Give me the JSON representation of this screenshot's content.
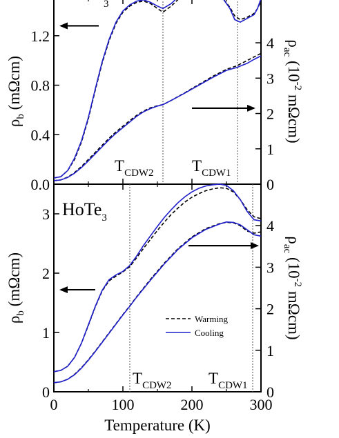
{
  "chart_data": [
    {
      "panel": "top",
      "type": "line",
      "xlim": [
        0,
        300
      ],
      "ylim_left": [
        0,
        1.5
      ],
      "ylim_right": [
        0,
        5.25
      ],
      "xticks": [
        0,
        100,
        200,
        300
      ],
      "yticks_left": [
        "0.0",
        "0.4",
        "0.8",
        "1.2"
      ],
      "yticks_right": [
        "0",
        "1",
        "2",
        "3",
        "4"
      ],
      "ylabel_left": {
        "main": "ρ",
        "sub": "b",
        "rest": " (mΩcm)"
      },
      "ylabel_right": {
        "main": "ρ",
        "sub": "ac",
        "rest": " (10",
        "sup": "-2",
        "rest2": " mΩcm)"
      },
      "top_fragment": "3",
      "annotations": [
        {
          "main": "T",
          "sub": "CDW2",
          "x": 158
        },
        {
          "main": "T",
          "sub": "CDW1",
          "x": 266
        }
      ],
      "series": [
        {
          "axis": "left",
          "style": "dashed",
          "color": "#000000",
          "x": [
            0,
            10,
            20,
            30,
            40,
            50,
            60,
            70,
            80,
            90,
            100,
            110,
            120,
            130,
            140,
            150,
            158,
            170,
            185,
            200,
            215,
            230,
            245,
            255,
            262,
            270,
            280,
            290,
            295,
            300
          ],
          "y": [
            0.05,
            0.06,
            0.11,
            0.2,
            0.34,
            0.53,
            0.76,
            0.98,
            1.16,
            1.3,
            1.39,
            1.44,
            1.47,
            1.48,
            1.46,
            1.42,
            1.39,
            1.44,
            1.52,
            1.57,
            1.58,
            1.56,
            1.5,
            1.43,
            1.36,
            1.33,
            1.35,
            1.38,
            1.42,
            1.48
          ]
        },
        {
          "axis": "left",
          "style": "solid",
          "color": "#1f1fcc",
          "x": [
            0,
            10,
            20,
            30,
            40,
            50,
            60,
            70,
            80,
            90,
            100,
            110,
            120,
            130,
            140,
            150,
            158,
            170,
            185,
            200,
            215,
            230,
            245,
            255,
            262,
            270,
            280,
            290,
            295,
            300
          ],
          "y": [
            0.05,
            0.06,
            0.11,
            0.21,
            0.35,
            0.54,
            0.77,
            0.99,
            1.17,
            1.31,
            1.4,
            1.45,
            1.48,
            1.49,
            1.47,
            1.44,
            1.42,
            1.46,
            1.54,
            1.59,
            1.6,
            1.57,
            1.5,
            1.42,
            1.33,
            1.31,
            1.34,
            1.37,
            1.42,
            1.5
          ]
        },
        {
          "axis": "right",
          "style": "dashed",
          "color": "#000000",
          "x": [
            0,
            10,
            20,
            30,
            40,
            50,
            60,
            70,
            80,
            90,
            100,
            110,
            120,
            130,
            140,
            150,
            158,
            170,
            190,
            210,
            230,
            250,
            265,
            280,
            290,
            300
          ],
          "y": [
            0.1,
            0.12,
            0.2,
            0.33,
            0.5,
            0.7,
            0.9,
            1.1,
            1.3,
            1.48,
            1.64,
            1.8,
            1.95,
            2.07,
            2.16,
            2.22,
            2.25,
            2.37,
            2.59,
            2.82,
            3.05,
            3.25,
            3.35,
            3.5,
            3.6,
            3.7
          ]
        },
        {
          "axis": "right",
          "style": "solid",
          "color": "#1f1fcc",
          "x": [
            0,
            10,
            20,
            30,
            40,
            50,
            60,
            70,
            80,
            90,
            100,
            110,
            120,
            130,
            140,
            150,
            158,
            170,
            190,
            210,
            230,
            250,
            265,
            280,
            290,
            300
          ],
          "y": [
            0.1,
            0.12,
            0.19,
            0.31,
            0.47,
            0.66,
            0.86,
            1.06,
            1.26,
            1.44,
            1.6,
            1.76,
            1.92,
            2.05,
            2.14,
            2.21,
            2.25,
            2.37,
            2.58,
            2.8,
            3.02,
            3.22,
            3.3,
            3.42,
            3.53,
            3.63
          ]
        }
      ],
      "arrows": [
        {
          "direction": "left",
          "x_from": 65,
          "x_to": 10,
          "y": 1.28,
          "axis": "left"
        },
        {
          "direction": "right",
          "x_from": 200,
          "x_to": 290,
          "y": 2.15,
          "axis": "right"
        }
      ]
    },
    {
      "panel": "bottom",
      "type": "line",
      "xlim": [
        0,
        300
      ],
      "ylim_left": [
        0,
        3.5
      ],
      "ylim_right": [
        0,
        5.0
      ],
      "xticks": [
        0,
        100,
        200,
        300
      ],
      "xtick_labels": [
        "0",
        "100",
        "200",
        "300"
      ],
      "yticks_left": [
        "0",
        "1",
        "2",
        "3"
      ],
      "yticks_right": [
        "0",
        "1",
        "2",
        "3",
        "4"
      ],
      "xlabel": "Temperature (K)",
      "ylabel_left": {
        "main": "ρ",
        "sub": "b",
        "rest": " (mΩcm)"
      },
      "ylabel_right": {
        "main": "ρ",
        "sub": "ac",
        "rest": " (10",
        "sup": "-2",
        "rest2": " mΩcm)"
      },
      "sample_label": {
        "main": "HoTe",
        "sub": "3"
      },
      "annotations": [
        {
          "main": "T",
          "sub": "CDW2",
          "x": 110
        },
        {
          "main": "T",
          "sub": "CDW1",
          "x": 288
        }
      ],
      "legend": [
        {
          "label": "Warming",
          "style": "dashed",
          "color": "#000000"
        },
        {
          "label": "Cooling",
          "style": "solid",
          "color": "#1f1fcc"
        }
      ],
      "series": [
        {
          "name": "Warming",
          "axis": "left",
          "style": "dashed",
          "color": "#000000",
          "x": [
            0,
            10,
            20,
            30,
            40,
            50,
            60,
            70,
            80,
            90,
            100,
            110,
            120,
            130,
            140,
            150,
            160,
            170,
            180,
            190,
            200,
            210,
            220,
            230,
            240,
            250,
            260,
            270,
            280,
            290,
            300
          ],
          "y": [
            0.34,
            0.36,
            0.43,
            0.58,
            0.82,
            1.12,
            1.43,
            1.7,
            1.87,
            1.95,
            2.02,
            2.11,
            2.26,
            2.42,
            2.57,
            2.72,
            2.86,
            2.99,
            3.1,
            3.2,
            3.28,
            3.34,
            3.39,
            3.42,
            3.44,
            3.43,
            3.37,
            3.24,
            3.07,
            2.95,
            2.92
          ]
        },
        {
          "name": "Cooling",
          "axis": "left",
          "style": "solid",
          "color": "#1f1fcc",
          "x": [
            0,
            10,
            20,
            30,
            40,
            50,
            60,
            70,
            80,
            90,
            100,
            110,
            120,
            130,
            140,
            150,
            160,
            170,
            180,
            190,
            200,
            210,
            220,
            230,
            240,
            250,
            260,
            270,
            280,
            290,
            300
          ],
          "y": [
            0.34,
            0.36,
            0.43,
            0.58,
            0.82,
            1.13,
            1.44,
            1.71,
            1.89,
            1.97,
            2.03,
            2.13,
            2.29,
            2.47,
            2.63,
            2.79,
            2.94,
            3.07,
            3.19,
            3.29,
            3.37,
            3.43,
            3.47,
            3.49,
            3.5,
            3.48,
            3.39,
            3.24,
            3.04,
            2.9,
            2.88
          ]
        },
        {
          "name": "Warming",
          "axis": "right",
          "style": "dashed",
          "color": "#000000",
          "x": [
            0,
            10,
            20,
            30,
            40,
            50,
            60,
            70,
            80,
            90,
            100,
            110,
            120,
            140,
            160,
            180,
            200,
            220,
            240,
            250,
            260,
            270,
            280,
            290,
            300
          ],
          "y": [
            0.22,
            0.24,
            0.3,
            0.42,
            0.58,
            0.77,
            0.98,
            1.2,
            1.42,
            1.64,
            1.86,
            2.07,
            2.29,
            2.71,
            3.1,
            3.45,
            3.73,
            3.93,
            4.05,
            4.08,
            4.07,
            4.0,
            3.87,
            3.82,
            3.85
          ]
        },
        {
          "name": "Cooling",
          "axis": "right",
          "style": "solid",
          "color": "#1f1fcc",
          "x": [
            0,
            10,
            20,
            30,
            40,
            50,
            60,
            70,
            80,
            90,
            100,
            110,
            120,
            140,
            160,
            180,
            200,
            220,
            240,
            250,
            260,
            270,
            280,
            290,
            300
          ],
          "y": [
            0.22,
            0.24,
            0.3,
            0.41,
            0.57,
            0.76,
            0.97,
            1.19,
            1.41,
            1.63,
            1.85,
            2.06,
            2.28,
            2.69,
            3.08,
            3.43,
            3.71,
            3.91,
            4.04,
            4.09,
            4.08,
            4.02,
            3.9,
            3.78,
            3.75
          ]
        }
      ],
      "arrows": [
        {
          "direction": "left",
          "x_from": 60,
          "x_to": 10,
          "y": 1.72,
          "axis": "left"
        },
        {
          "direction": "right",
          "x_from": 195,
          "x_to": 295,
          "y": 3.52,
          "axis": "right"
        }
      ]
    }
  ]
}
